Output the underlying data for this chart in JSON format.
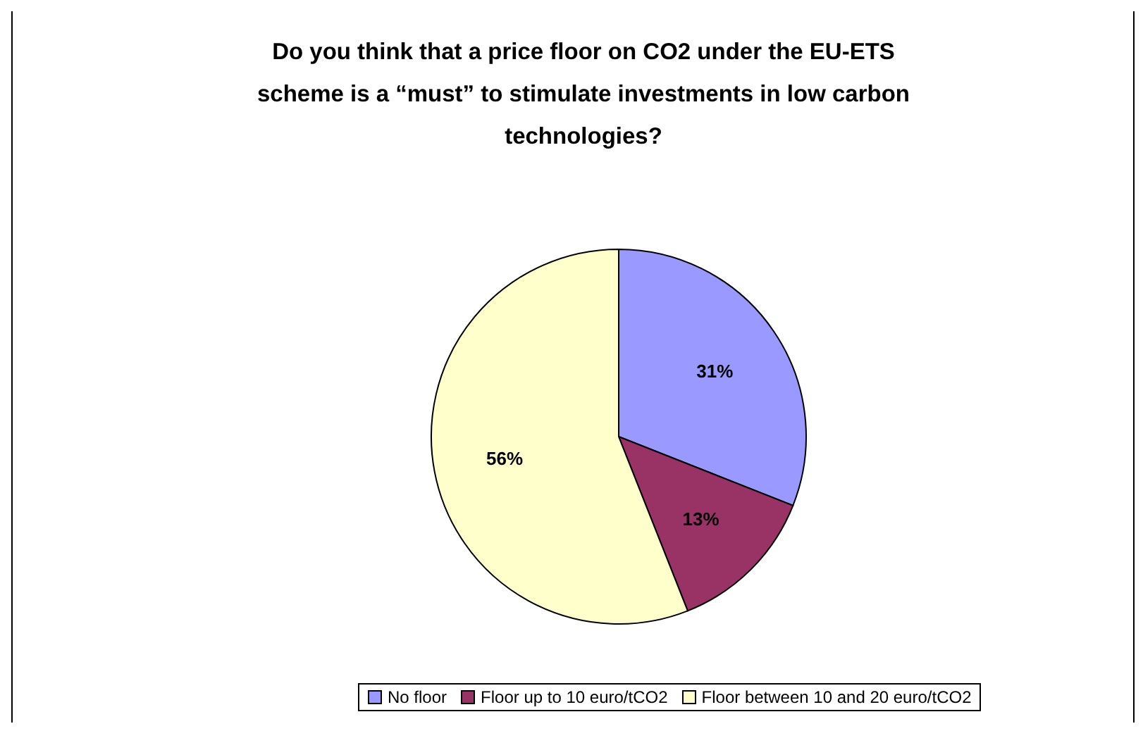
{
  "chart_data": {
    "type": "pie",
    "title": "Do you think that a price floor on CO2 under the EU-ETS scheme is a “must” to stimulate investments in low carbon technologies?",
    "categories": [
      "No floor",
      "Floor up to 10 euro/tCO2",
      "Floor between 10 and 20 euro/tCO2"
    ],
    "values": [
      31,
      13,
      56
    ],
    "colors": [
      "#9999ff",
      "#993366",
      "#ffffcc"
    ],
    "value_labels": [
      "31%",
      "13%",
      "56%"
    ],
    "legend": "bottom"
  }
}
